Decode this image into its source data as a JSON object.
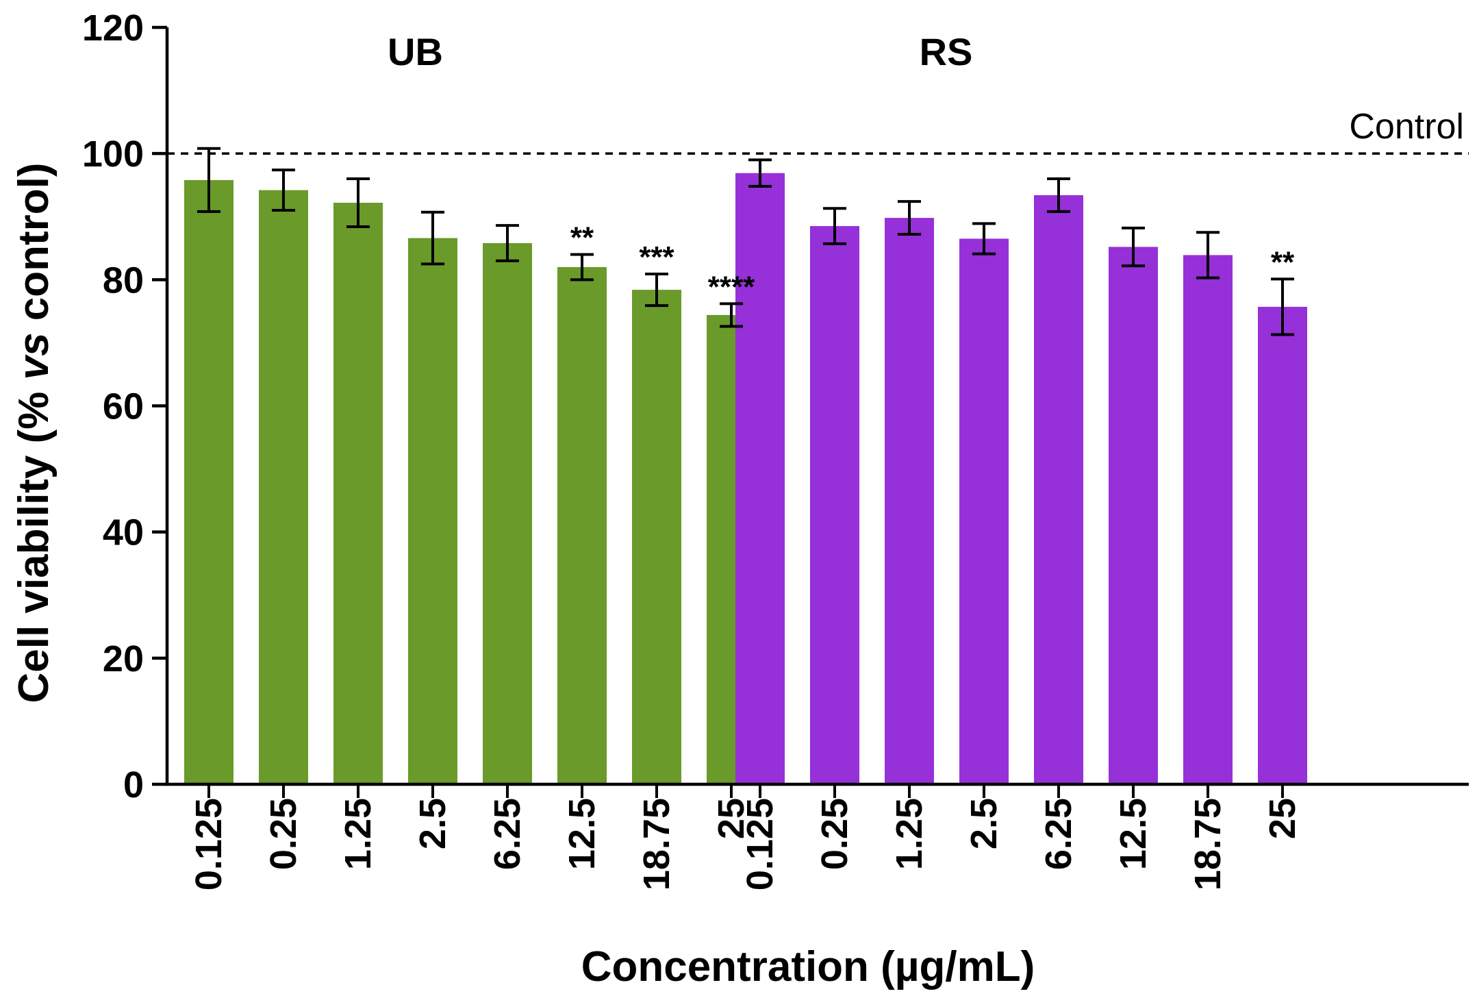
{
  "chart_data": {
    "type": "bar",
    "xlabel": "Concentration (µg/mL)",
    "ylabel_parts": [
      "Cell viability (% ",
      "vs",
      " control)"
    ],
    "ylim": [
      0,
      120
    ],
    "yticks": [
      0,
      20,
      40,
      60,
      80,
      100,
      120
    ],
    "reference_line": {
      "value": 100,
      "label": "Control",
      "style": "dashed"
    },
    "groups": [
      {
        "name": "UB",
        "color": "#6a9a2a",
        "categories": [
          "0.125",
          "0.25",
          "1.25",
          "2.5",
          "6.25",
          "12.5",
          "18.75",
          "25"
        ],
        "values": [
          95.8,
          94.2,
          92.2,
          86.6,
          85.8,
          82.0,
          78.4,
          74.4
        ],
        "errors": [
          5.0,
          3.2,
          3.8,
          4.1,
          2.8,
          2.0,
          2.5,
          1.8
        ],
        "significance": [
          "",
          "",
          "",
          "",
          "",
          "**",
          "***",
          "****"
        ]
      },
      {
        "name": "RS",
        "color": "#9630d8",
        "categories": [
          "0.125",
          "0.25",
          "1.25",
          "2.5",
          "6.25",
          "12.5",
          "18.75",
          "25"
        ],
        "values": [
          96.9,
          88.5,
          89.8,
          86.5,
          93.4,
          85.2,
          83.9,
          75.7
        ],
        "errors": [
          2.1,
          2.8,
          2.6,
          2.4,
          2.6,
          3.0,
          3.6,
          4.4
        ],
        "significance": [
          "",
          "",
          "",
          "",
          "",
          "",
          "",
          "**"
        ]
      }
    ]
  }
}
